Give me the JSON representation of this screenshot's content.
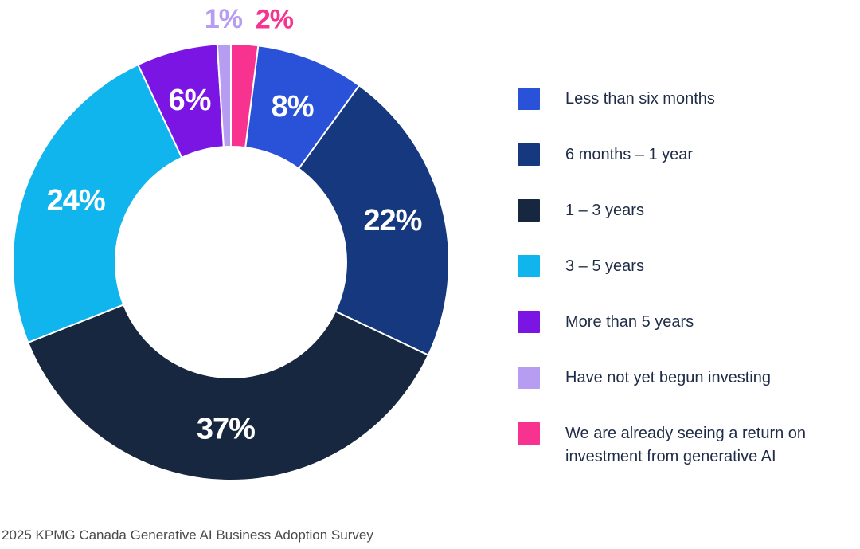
{
  "chart_data": {
    "type": "pie",
    "donut": true,
    "title": "",
    "label_format": "percent",
    "legend_position": "right",
    "rotation_deg": 7.2,
    "inner_radius_ratio": 0.53,
    "slices": [
      {
        "label": "Less than six months",
        "value": 8,
        "color": "#2a52d8"
      },
      {
        "label": "6 months – 1 year",
        "value": 22,
        "color": "#16387e"
      },
      {
        "label": "1 – 3 years",
        "value": 37,
        "color": "#17273f"
      },
      {
        "label": "3 – 5 years",
        "value": 24,
        "color": "#0fb5ec"
      },
      {
        "label": "More than 5 years",
        "value": 6,
        "color": "#7b15e4"
      },
      {
        "label": "Have not yet begun investing",
        "value": 1,
        "color": "#b79df1"
      },
      {
        "label": "We are already seeing a return on investment from generative AI",
        "value": 2,
        "color": "#f7338f"
      }
    ]
  },
  "footer": {
    "source": "2025 KPMG Canada Generative AI Business Adoption Survey"
  }
}
